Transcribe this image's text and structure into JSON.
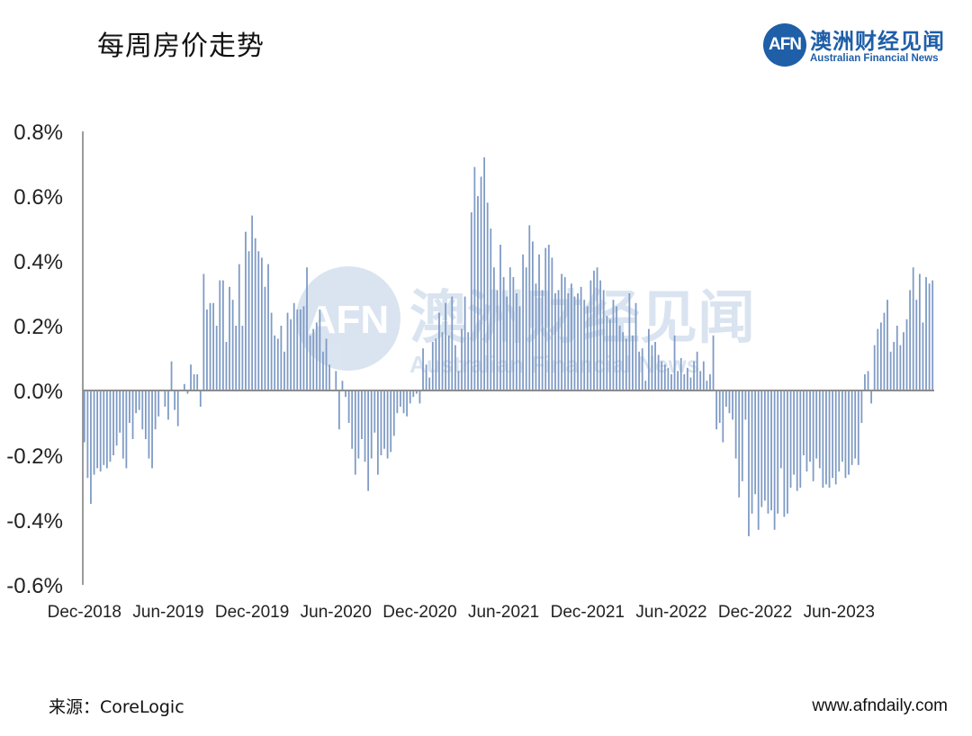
{
  "header": {
    "title": "每周房价走势",
    "logo_mark": "AFN",
    "logo_cn": "澳洲财经见闻",
    "logo_en": "Australian Financial News"
  },
  "footer": {
    "source": "来源：CoreLogic",
    "website": "www.afndaily.com"
  },
  "colors": {
    "bar": "#7f9bc5",
    "axis": "#7a7a7a",
    "brand": "#1f5fa8"
  },
  "chart_data": {
    "type": "bar",
    "title": "每周房价走势",
    "xlabel": "",
    "ylabel": "",
    "ylim": [
      -0.6,
      0.8
    ],
    "y_ticks": [
      "0.8%",
      "0.6%",
      "0.4%",
      "0.2%",
      "0.0%",
      "-0.2%",
      "-0.4%",
      "-0.6%"
    ],
    "x_tick_labels": [
      "Dec-2018",
      "Jun-2019",
      "Dec-2019",
      "Jun-2020",
      "Dec-2020",
      "Jun-2021",
      "Dec-2021",
      "Jun-2022",
      "Dec-2022",
      "Jun-2023"
    ],
    "weeks_per_period": 26,
    "grid": false,
    "legend": "none",
    "series": [
      {
        "values": [
          -0.16,
          -0.27,
          -0.35,
          -0.26,
          -0.24,
          -0.25,
          -0.23,
          -0.24,
          -0.22,
          -0.2,
          -0.17,
          -0.13,
          -0.21,
          -0.24,
          -0.1,
          -0.15,
          -0.07,
          -0.06,
          -0.12,
          -0.15,
          -0.21,
          -0.24,
          -0.12,
          -0.08,
          0.0,
          -0.05,
          -0.09,
          0.09,
          -0.06,
          -0.11,
          0.0,
          0.02,
          -0.01,
          0.08,
          0.05,
          0.05,
          -0.05,
          0.36,
          0.25,
          0.27,
          0.27,
          0.2,
          0.34,
          0.34,
          0.15,
          0.32,
          0.28,
          0.2,
          0.39,
          0.2,
          0.49,
          0.43,
          0.54,
          0.47,
          0.43,
          0.41,
          0.32,
          0.39,
          0.24,
          0.17,
          0.16,
          0.2,
          0.12,
          0.24,
          0.22,
          0.27,
          0.25,
          0.25,
          0.26,
          0.38,
          0.17,
          0.19,
          0.21,
          0.25,
          0.12,
          0.16,
          0.08,
          0.0,
          0.06,
          -0.12,
          0.03,
          -0.02,
          -0.1,
          -0.18,
          -0.26,
          -0.21,
          -0.15,
          -0.22,
          -0.31,
          -0.21,
          -0.13,
          -0.26,
          -0.2,
          -0.18,
          -0.21,
          -0.19,
          -0.14,
          -0.07,
          -0.05,
          -0.07,
          -0.08,
          -0.04,
          -0.02,
          -0.01,
          -0.04,
          0.13,
          0.08,
          0.04,
          0.15,
          0.16,
          0.24,
          0.18,
          0.27,
          0.17,
          0.29,
          0.14,
          0.06,
          0.19,
          0.29,
          0.18,
          0.55,
          0.69,
          0.6,
          0.66,
          0.72,
          0.58,
          0.5,
          0.38,
          0.31,
          0.45,
          0.35,
          0.29,
          0.38,
          0.35,
          0.3,
          0.26,
          0.42,
          0.38,
          0.51,
          0.46,
          0.33,
          0.42,
          0.31,
          0.44,
          0.45,
          0.41,
          0.3,
          0.31,
          0.36,
          0.35,
          0.3,
          0.33,
          0.29,
          0.3,
          0.32,
          0.28,
          0.26,
          0.34,
          0.37,
          0.38,
          0.34,
          0.31,
          0.23,
          0.22,
          0.28,
          0.26,
          0.2,
          0.18,
          0.16,
          0.3,
          0.17,
          0.27,
          0.12,
          0.13,
          0.03,
          0.19,
          0.14,
          0.15,
          0.11,
          0.09,
          0.08,
          0.07,
          0.05,
          0.17,
          0.06,
          0.1,
          0.05,
          0.07,
          0.04,
          0.09,
          0.12,
          0.06,
          0.09,
          0.03,
          0.05,
          0.17,
          -0.12,
          -0.1,
          -0.16,
          -0.05,
          -0.07,
          -0.09,
          -0.21,
          -0.33,
          -0.28,
          -0.09,
          -0.45,
          -0.38,
          -0.32,
          -0.43,
          -0.36,
          -0.34,
          -0.38,
          -0.37,
          -0.43,
          -0.38,
          -0.24,
          -0.39,
          -0.38,
          -0.3,
          -0.26,
          -0.31,
          -0.3,
          -0.2,
          -0.25,
          -0.22,
          -0.28,
          -0.21,
          -0.24,
          -0.3,
          -0.29,
          -0.3,
          -0.27,
          -0.29,
          -0.25,
          -0.22,
          -0.27,
          -0.26,
          -0.23,
          -0.21,
          -0.23,
          -0.1,
          0.05,
          0.06,
          -0.04,
          0.14,
          0.19,
          0.21,
          0.24,
          0.28,
          0.12,
          0.15,
          0.2,
          0.14,
          0.18,
          0.22,
          0.31,
          0.38,
          0.28,
          0.36,
          0.21,
          0.35,
          0.33,
          0.34
        ]
      }
    ]
  }
}
